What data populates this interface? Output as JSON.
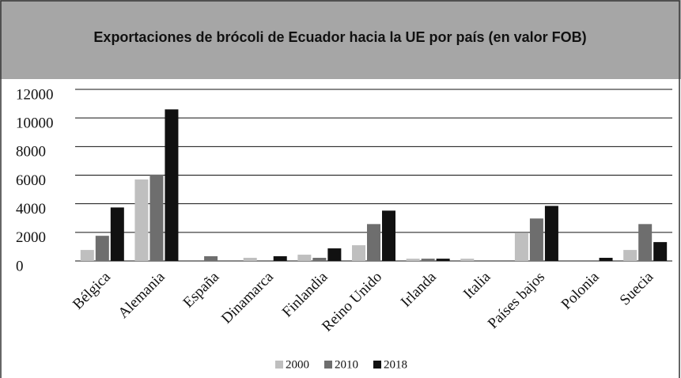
{
  "chart_data": {
    "type": "bar",
    "title": "Exportaciones de brócoli de Ecuador hacia la UE por país (en valor FOB)",
    "categories": [
      "Bélgica",
      "Alemania",
      "España",
      "Dinamarca",
      "Finlandia",
      "Reino Unido",
      "Irlanda",
      "Italia",
      "Países bajos",
      "Polonia",
      "Suecia"
    ],
    "series": [
      {
        "name": "2000",
        "color": "#bfbfbf",
        "values": [
          770,
          5700,
          0,
          220,
          440,
          1100,
          160,
          160,
          1980,
          0,
          770
        ]
      },
      {
        "name": "2010",
        "color": "#6e6e6e",
        "values": [
          1760,
          6040,
          330,
          0,
          220,
          2580,
          160,
          0,
          2970,
          0,
          2580
        ]
      },
      {
        "name": "2018",
        "color": "#111111",
        "values": [
          3740,
          10600,
          0,
          330,
          880,
          3520,
          160,
          0,
          3850,
          220,
          1320
        ]
      }
    ],
    "ylim": [
      0,
      12000
    ],
    "yticks": [
      0,
      2000,
      4000,
      6000,
      8000,
      10000,
      12000
    ],
    "grid": true
  }
}
